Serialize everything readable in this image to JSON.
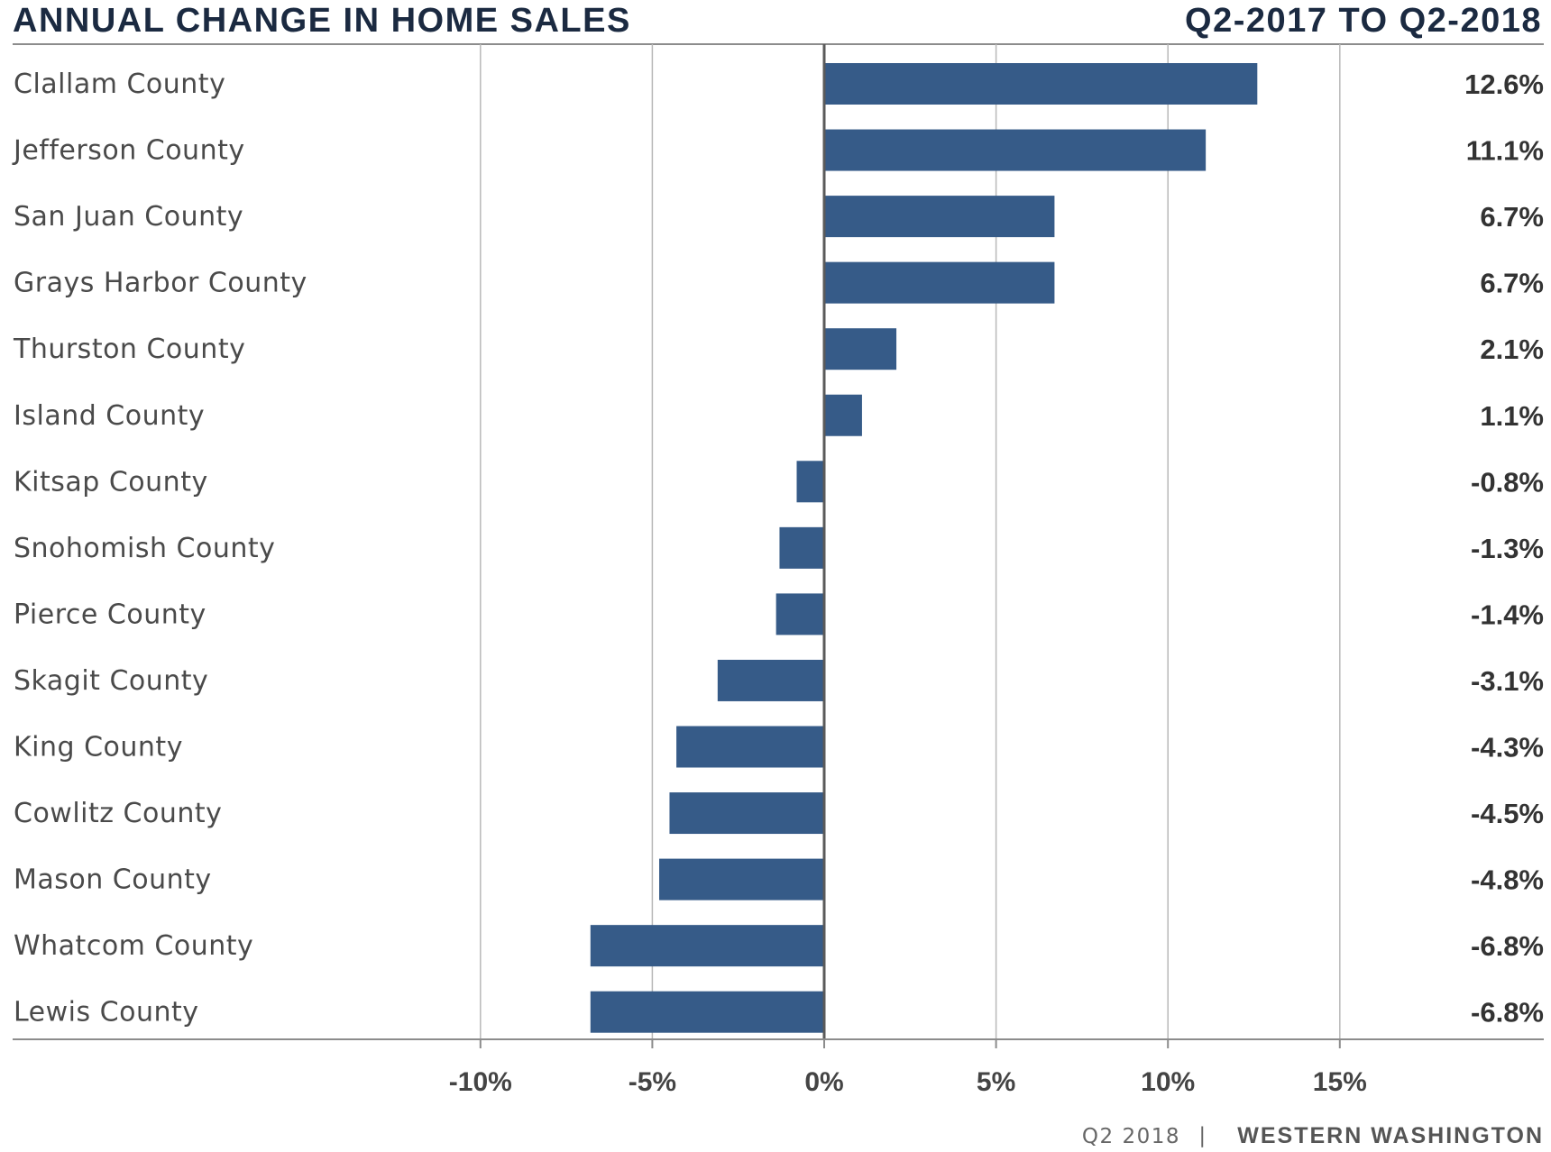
{
  "header": {
    "title": "ANNUAL CHANGE IN HOME SALES",
    "period": "Q2-2017 TO Q2-2018"
  },
  "footer": {
    "quarter": "Q2 2018",
    "separator": "|",
    "region": "WESTERN WASHINGTON"
  },
  "colors": {
    "bar": "#365b88",
    "title": "#1b2a41"
  },
  "chart_data": {
    "type": "bar",
    "orientation": "horizontal",
    "title": "ANNUAL CHANGE IN HOME SALES",
    "subtitle": "Q2-2017 TO Q2-2018",
    "xlabel": "",
    "ylabel": "",
    "xlim": [
      -20,
      20
    ],
    "grid": true,
    "legend": "none",
    "x_ticks": [
      -10,
      -5,
      0,
      5,
      10,
      15
    ],
    "x_tick_labels": [
      "-10%",
      "-5%",
      "0%",
      "5%",
      "10%",
      "15%"
    ],
    "categories": [
      "Clallam County",
      "Jefferson County",
      "San Juan County",
      "Grays Harbor County",
      "Thurston County",
      "Island County",
      "Kitsap County",
      "Snohomish County",
      "Pierce County",
      "Skagit County",
      "King County",
      "Cowlitz County",
      "Mason County",
      "Whatcom County",
      "Lewis County"
    ],
    "values": [
      12.6,
      11.1,
      6.7,
      6.7,
      2.1,
      1.1,
      -0.8,
      -1.3,
      -1.4,
      -3.1,
      -4.3,
      -4.5,
      -4.8,
      -6.8,
      -6.8
    ],
    "value_labels": [
      "12.6%",
      "11.1%",
      "6.7%",
      "6.7%",
      "2.1%",
      "1.1%",
      "-0.8%",
      "-1.3%",
      "-1.4%",
      "-3.1%",
      "-4.3%",
      "-4.5%",
      "-4.8%",
      "-6.8%",
      "-6.8%"
    ]
  }
}
